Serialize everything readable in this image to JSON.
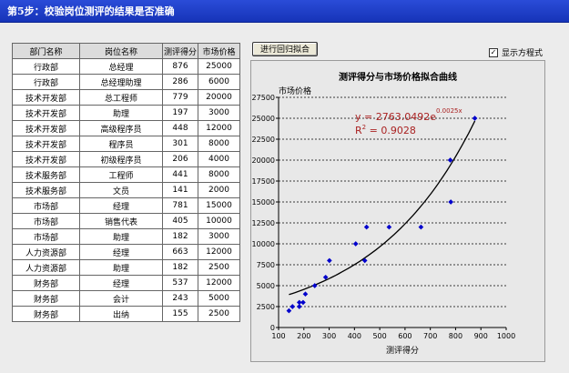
{
  "page": {
    "title": "第5步：校验岗位测评的结果是否准确"
  },
  "table": {
    "headers": [
      "部门名称",
      "岗位名称",
      "测评得分",
      "市场价格"
    ],
    "rows": [
      [
        "行政部",
        "总经理",
        "876",
        "25000"
      ],
      [
        "行政部",
        "总经理助理",
        "286",
        "6000"
      ],
      [
        "技术开发部",
        "总工程师",
        "779",
        "20000"
      ],
      [
        "技术开发部",
        "助理",
        "197",
        "3000"
      ],
      [
        "技术开发部",
        "高级程序员",
        "448",
        "12000"
      ],
      [
        "技术开发部",
        "程序员",
        "301",
        "8000"
      ],
      [
        "技术开发部",
        "初级程序员",
        "206",
        "4000"
      ],
      [
        "技术服务部",
        "工程师",
        "441",
        "8000"
      ],
      [
        "技术服务部",
        "文员",
        "141",
        "2000"
      ],
      [
        "市场部",
        "经理",
        "781",
        "15000"
      ],
      [
        "市场部",
        "销售代表",
        "405",
        "10000"
      ],
      [
        "市场部",
        "助理",
        "182",
        "3000"
      ],
      [
        "人力资源部",
        "经理",
        "663",
        "12000"
      ],
      [
        "人力资源部",
        "助理",
        "182",
        "2500"
      ],
      [
        "财务部",
        "经理",
        "537",
        "12000"
      ],
      [
        "财务部",
        "会计",
        "243",
        "5000"
      ],
      [
        "财务部",
        "出纳",
        "155",
        "2500"
      ]
    ]
  },
  "controls": {
    "regression_button": "进行回归拟合",
    "show_equation_label": "显示方程式",
    "show_equation_checked": true,
    "check_mark": "✓"
  },
  "chart_data": {
    "type": "scatter",
    "title": "测评得分与市场价格拟合曲线",
    "xlabel": "测评得分",
    "ylabel": "市场价格",
    "xlim": [
      100,
      1000
    ],
    "ylim": [
      0,
      27500
    ],
    "x_ticks": [
      100,
      200,
      300,
      400,
      500,
      600,
      700,
      800,
      900,
      1000
    ],
    "y_ticks": [
      0,
      2500,
      5000,
      7500,
      10000,
      12500,
      15000,
      17500,
      20000,
      22500,
      25000,
      27500
    ],
    "grid": "horizontal-dashed",
    "points": [
      [
        876,
        25000
      ],
      [
        286,
        6000
      ],
      [
        779,
        20000
      ],
      [
        197,
        3000
      ],
      [
        448,
        12000
      ],
      [
        301,
        8000
      ],
      [
        206,
        4000
      ],
      [
        441,
        8000
      ],
      [
        141,
        2000
      ],
      [
        781,
        15000
      ],
      [
        405,
        10000
      ],
      [
        182,
        3000
      ],
      [
        663,
        12000
      ],
      [
        182,
        2500
      ],
      [
        537,
        12000
      ],
      [
        243,
        5000
      ],
      [
        155,
        2500
      ]
    ],
    "fit": {
      "type": "exponential",
      "a": 2763.0492,
      "b": 0.0025
    },
    "equation_line1_main": "y = 2763.0492e",
    "equation_line1_exp": "0.0025x",
    "equation_line2_prefix": "R",
    "equation_line2_sup": "2",
    "equation_line2_value": " = 0.9028",
    "point_color": "#0000cc",
    "equation_color": "#aa2222"
  }
}
